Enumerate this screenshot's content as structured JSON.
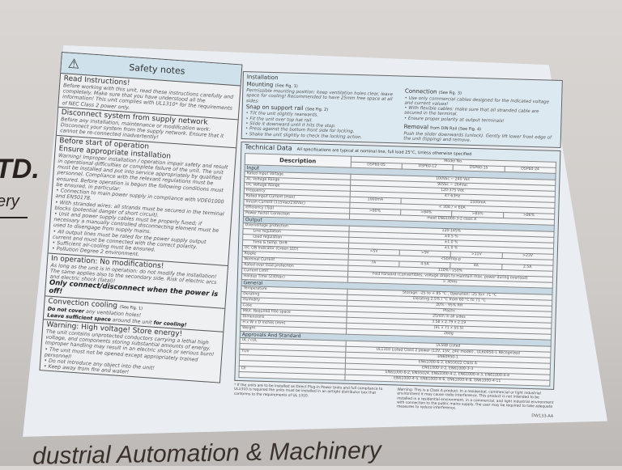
{
  "background": {
    "brand_fragment": "TD.",
    "tagline_fragment": "ery",
    "bottom_text": "dustrial Automation & Machinery"
  },
  "safety": {
    "title": "Safety notes",
    "icon": "warning-triangle-icon",
    "read": {
      "h": "Read Instructions!",
      "p": "Before working with this unit, read these instructions carefully and completely. Make sure that you have understood all the information! This unit complies with UL1310* for the requirements of NEC Class 2 power only."
    },
    "disconnect": {
      "h": "Disconnect system from supply network",
      "p": "Before any installation, maintenance or modification work: Disconnect your system from the supply network. Ensure that it cannot be re-connected inadvertently!"
    },
    "before": {
      "h1": "Before start of operation",
      "h2": "Ensure appropriate installation",
      "p": "Warning! Improper installation / operation impair safety and result in operational difficulties or complete failure of the unit. The unit must be installed and put into service appropriately by qualified personnel. Compliance with the relevant regulations must be ensured. Before operation is begun the following conditions must be ensured, in particular:",
      "items": [
        "Connection to main power supply in compliance with VDE01000 and EN50178.",
        "With stranded wires: all strands must be secured in the terminal blocks (potential danger of short circuit).",
        "Unit and power supply cables must be properly fused; if necessary a manually controlled disconnecting element must be used to disengage from supply mains.",
        "All output lines must be rated for the power supply output current and must be connected with the correct polarity.",
        "Sufficient air-cooling must be ensured.",
        "Pollution Degree 2 environment."
      ]
    },
    "operation": {
      "h": "In operation: No modifications!",
      "p": "As long as the unit is in operation: do not modify the installation! The same applies also to the secondary side. Risk of electric arcs and electric shock (fatal)!",
      "b": "Only connect/disconnect when the power is off!"
    },
    "convection": {
      "h": "Convection cooling",
      "ref": "(See Fig. 1)",
      "b1": "Do not cover",
      "t1": "any ventilation holes!",
      "b2": "Leave sufficient space",
      "t2": "around the unit",
      "b3": "for cooling!"
    },
    "warning": {
      "h": "Warning: High voltage! Store energy!",
      "p": "The unit contains unprotected conductors carrying a lethal high voltage, and components storing substantial amounts of energy. Improper handling may result in an electric shock or serious burn!",
      "items": [
        "The unit must not be opened except appropriately trained personnel!",
        "Do not introduce any object into the unit!",
        "Keep away from fire and water!"
      ]
    }
  },
  "installation": {
    "title": "Installation",
    "mounting": {
      "h": "Mounting",
      "ref": "(See Fig. 1)",
      "p": "Permissible mounting position: keep ventilation holes clear, leave space for cooling! Recommended to have 25mm free space at all sides:"
    },
    "snap": {
      "h": "Snap on support rail",
      "ref": "(See Fig. 2)",
      "items": [
        "Tilt the unit slightly rearwards.",
        "Fit the unit over top hat rail.",
        "Slide it downward until it hits the stop.",
        "Press against the bottom front side for locking.",
        "Shake the unit slightly to check the locking action."
      ]
    },
    "connection": {
      "h": "Connection",
      "ref": "(See Fig. 3)",
      "items": [
        "Use only commercial cables designed for the indicated voltage and current values!",
        "With flexible cables: make sure that all stranded cable are secured in the terminal.",
        "Ensure proper polarity at output terminals!"
      ]
    },
    "removal": {
      "h": "Removal",
      "ref": "from DIN Rail (See Fig. 4)",
      "p": "Push the slider downwards (unlock). Gently lift lower front edge of the unit (tipping) and remove."
    }
  },
  "tech": {
    "title": "Technical Data",
    "note": "All specifications are typical at nominal line, full load 25°C, Unless otherwise specified",
    "desc_header": "Description",
    "model_header": "Model No.",
    "models": [
      "DSP60-05",
      "DSP60-12",
      "DSP60-15",
      "DSP60-24"
    ],
    "sections": [
      {
        "name": "Input",
        "rows": [
          {
            "label": "Rated Input Voltage",
            "cells": [
              [
                "100Vac ~ 240 Vac",
                4
              ]
            ]
          },
          {
            "label": "AC Voltage Range",
            "cells": [
              [
                "90Vac ~ 264Vac",
                4
              ]
            ]
          },
          {
            "label": "DC Voltage Range",
            "cells": [
              [
                "120-375 Vdc",
                4
              ]
            ]
          },
          {
            "label": "Frequency",
            "cells": [
              [
                "47-63Hz",
                4
              ]
            ]
          },
          {
            "label": "Rated Input Current (max)",
            "cells": [
              [
                "1000mA",
                1
              ],
              [
                "1500mA",
                3
              ]
            ]
          },
          {
            "label": "Inrush Current (115Vac/230Vac)",
            "cells": [
              [
                "< 30A / < 60A",
                4
              ]
            ]
          },
          {
            "label": "Efficiency (Typ)",
            "cells": [
              [
                ">80%",
                1
              ],
              [
                ">84%",
                1
              ],
              [
                ">85%",
                1
              ],
              [
                ">86%",
                1
              ]
            ]
          },
          {
            "label": "Power Factor Correction",
            "cells": [
              [
                "meet EN61000-3-2 class A",
                4
              ]
            ]
          }
        ]
      },
      {
        "name": "Output",
        "rows": [
          {
            "label": "Overvoltage protection",
            "cells": [
              [
                "120-145%",
                4
              ]
            ]
          },
          {
            "label": "Line regulation",
            "indent": true,
            "cells": [
              [
                "±0.5 %",
                4
              ]
            ]
          },
          {
            "label": "Load regulation",
            "indent": true,
            "cells": [
              [
                "±1.0 %",
                4
              ]
            ]
          },
          {
            "label": "Time & temp. Drift",
            "indent": true,
            "cells": [
              [
                "±1.0 %",
                4
              ]
            ]
          },
          {
            "label": "DC ON Indicator (Green LED)",
            "cells": [
              [
                ">5V",
                1
              ],
              [
                ">9V",
                1
              ],
              [
                ">11V",
                1
              ],
              [
                ">23V",
                1
              ]
            ]
          },
          {
            "label": "Ripple",
            "cells": [
              [
                "<50mVp-p",
                4
              ]
            ]
          },
          {
            "label": "Nominal Current",
            "cells": [
              [
                "7A",
                1
              ],
              [
                "4.5A",
                1
              ],
              [
                "4A",
                1
              ],
              [
                "2.5A",
                1
              ]
            ]
          },
          {
            "label": "Rated over load protection",
            "cells": [
              [
                "110%~150%",
                4
              ]
            ]
          },
          {
            "label": "Current Limit",
            "cells": [
              [
                "Fold Forward (Convertibles, voltage drops to maintain max. power during overload)",
                4
              ]
            ]
          },
          {
            "label": "Holdup Time (230Vac)",
            "cells": [
              [
                "> 30ms",
                4
              ]
            ]
          }
        ]
      },
      {
        "name": "General",
        "rows": [
          {
            "label": "Temperature",
            "cells": [
              [
                "Storage: -25 to + 85 °C , Operation: -25 to+ 71 °C",
                4
              ]
            ]
          },
          {
            "label": "Derating",
            "cells": [
              [
                "Derating 2.5% / °C from 60 °C to 71 °C",
                4
              ]
            ]
          },
          {
            "label": "Humidity",
            "cells": [
              [
                "20% - 95% RH",
                4
              ]
            ]
          },
          {
            "label": "Case",
            "cells": [
              [
                "Plastic",
                4
              ]
            ]
          },
          {
            "label": "MAX. Required free space",
            "cells": [
              [
                "25mm in all sides",
                4
              ]
            ]
          },
          {
            "label": "Dimensions",
            "cells": [
              [
                "3.58 x 2.79 x 2.19",
                4
              ]
            ]
          },
          {
            "label": "H x W x D inches (mm)",
            "cells": [
              [
                "(91 x 71 x 55.5)",
                4
              ]
            ]
          },
          {
            "label": "Weight",
            "cells": [
              [
                "260g",
                4
              ]
            ]
          }
        ]
      },
      {
        "name": "Approvals And Standard",
        "rows": [
          {
            "label": "UL / cUL",
            "cells": [
              [
                "UL508 Listed",
                4
              ]
            ]
          },
          {
            "label": "",
            "cells": [
              [
                "UL1310 Listed Class 2 power (12V, 15V, 24V model) , UL60950-1 Recognized",
                4
              ]
            ]
          },
          {
            "label": "TUV",
            "cells": [
              [
                "EN60950-1",
                4
              ]
            ]
          },
          {
            "label": "",
            "cells": [
              [
                "EN61000-6-3, EN55022  Class A",
                4
              ]
            ]
          },
          {
            "label": "",
            "cells": [
              [
                "EN61000-3-2, EN61000-3-3",
                4
              ]
            ]
          },
          {
            "label": "CE",
            "cells": [
              [
                "EN61000-6-2, EN55024, EN61000-4-2, EN61000-4-3, EN61000-4-4",
                4
              ]
            ]
          },
          {
            "label": "",
            "cells": [
              [
                "EN61000-4-5, EN61000-4-6, EN61000-4-8, EN61000-4-11",
                4
              ]
            ]
          }
        ]
      }
    ]
  },
  "footer": {
    "note": "* If the units are to be installed as Direct Plug-in Power Units and full compliance to UL1310 is required the units must be installed in an airtight distributor box that conforms to the requirements of UL 1310.",
    "warning_label": "Warning:",
    "warning": "This is a Class A product. In a residential, commercial or light industrial environment it may cause radio interference. This product is not intended to be installed in a residential environment, in a commercial, and light industrial environment with connection to the public mains supply, the user may be required to take adequate measures to reduce interference.",
    "doc_id": "DW133-AA"
  }
}
